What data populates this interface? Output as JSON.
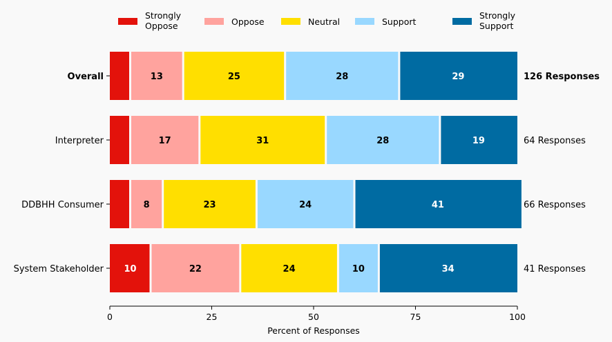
{
  "chart_data": {
    "type": "bar",
    "orientation": "horizontal",
    "stacked": true,
    "title": "",
    "xlabel": "Percent of Responses",
    "ylabel": "",
    "xlim": [
      0,
      100
    ],
    "xticks": [
      0,
      25,
      50,
      75,
      100
    ],
    "grid": false,
    "legend_position": "top",
    "categories": [
      "Overall",
      "Interpreter",
      "DDBHH Consumer",
      "System Stakeholder"
    ],
    "category_bold": [
      true,
      false,
      false,
      false
    ],
    "response_counts": [
      "126 Responses",
      "64 Responses",
      "66 Responses",
      "41 Responses"
    ],
    "series": [
      {
        "name": "Strongly\nOppose",
        "color": "#e3120b",
        "label_color": "#ffffff",
        "values": [
          5,
          5,
          5,
          10
        ],
        "show_labels": [
          false,
          false,
          false,
          true
        ]
      },
      {
        "name": "Oppose",
        "color": "#ffa39e",
        "label_color": "#000000",
        "values": [
          13,
          17,
          8,
          22
        ],
        "show_labels": [
          true,
          true,
          true,
          true
        ]
      },
      {
        "name": "Neutral",
        "color": "#ffdf00",
        "label_color": "#000000",
        "values": [
          25,
          31,
          23,
          24
        ],
        "show_labels": [
          true,
          true,
          true,
          true
        ]
      },
      {
        "name": "Support",
        "color": "#99d8ff",
        "label_color": "#000000",
        "values": [
          28,
          28,
          24,
          10
        ],
        "show_labels": [
          true,
          true,
          true,
          true
        ]
      },
      {
        "name": "Strongly\nSupport",
        "color": "#006ba2",
        "label_color": "#ffffff",
        "values": [
          29,
          19,
          41,
          34
        ],
        "show_labels": [
          true,
          true,
          true,
          true
        ]
      }
    ]
  }
}
